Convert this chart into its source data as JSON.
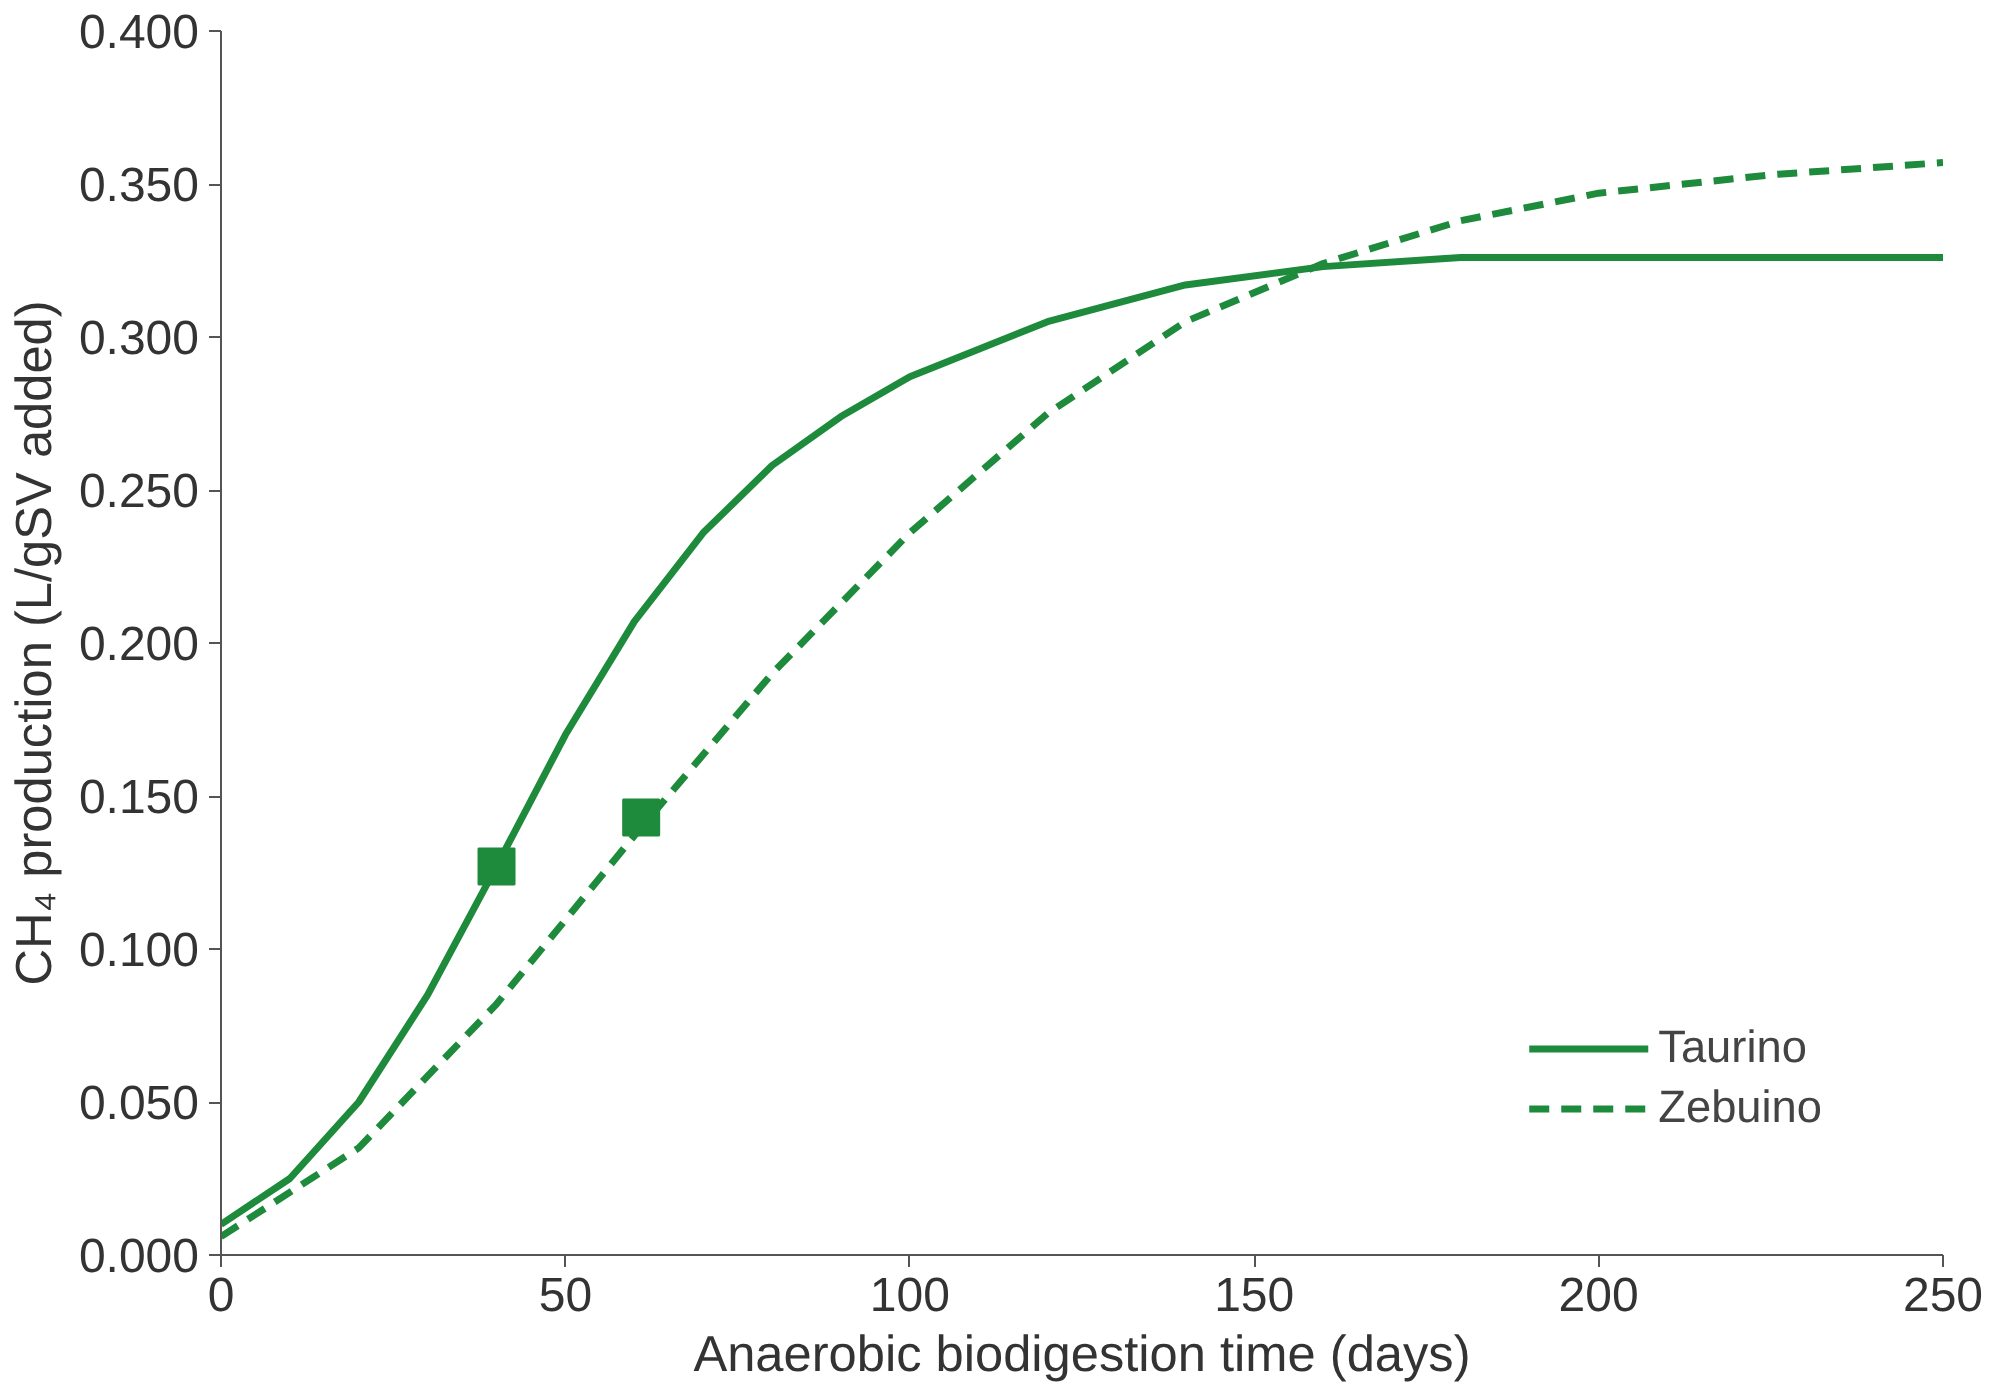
{
  "chart_data": {
    "type": "line",
    "xlabel": "Anaerobic biodigestion time (days)",
    "ylabel": "CH₄ production (L/gSV added)",
    "xlim": [
      0,
      250
    ],
    "xticks": [
      0,
      50,
      100,
      150,
      200,
      250
    ],
    "ylim": [
      0,
      0.4
    ],
    "yticks": [
      {
        "value": 0,
        "label": "0.000"
      },
      {
        "value": 0.05,
        "label": "0.050"
      },
      {
        "value": 0.1,
        "label": "0.100"
      },
      {
        "value": 0.15,
        "label": "0.150"
      },
      {
        "value": 0.2,
        "label": "0.200"
      },
      {
        "value": 0.25,
        "label": "0.250"
      },
      {
        "value": 0.3,
        "label": "0.300"
      },
      {
        "value": 0.35,
        "label": "0.350"
      },
      {
        "value": 0.4,
        "label": "0.400"
      }
    ],
    "grid": false,
    "legend": "bottom right",
    "series": [
      {
        "name": "Taurino",
        "color": "#1e8a3c",
        "line_style": "solid",
        "x": [
          0,
          10,
          20,
          30,
          40,
          50,
          60,
          70,
          80,
          90,
          100,
          120,
          140,
          160,
          180,
          200,
          250
        ],
        "values": [
          0.01,
          0.025,
          0.05,
          0.085,
          0.127,
          0.17,
          0.207,
          0.236,
          0.258,
          0.274,
          0.287,
          0.305,
          0.317,
          0.323,
          0.326,
          0.326,
          0.326
        ]
      },
      {
        "name": "Zebuino",
        "color": "#1e8a3c",
        "line_style": "dashed",
        "x": [
          0,
          20,
          40,
          60,
          80,
          100,
          120,
          140,
          160,
          180,
          200,
          225,
          250
        ],
        "values": [
          0.006,
          0.035,
          0.082,
          0.137,
          0.19,
          0.236,
          0.275,
          0.305,
          0.324,
          0.338,
          0.347,
          0.353,
          0.357
        ]
      },
      {
        "type": "scatter",
        "marker": "square",
        "color": "#1e8a3c",
        "x": [
          40,
          61
        ],
        "values": [
          0.127,
          0.143
        ]
      }
    ]
  }
}
